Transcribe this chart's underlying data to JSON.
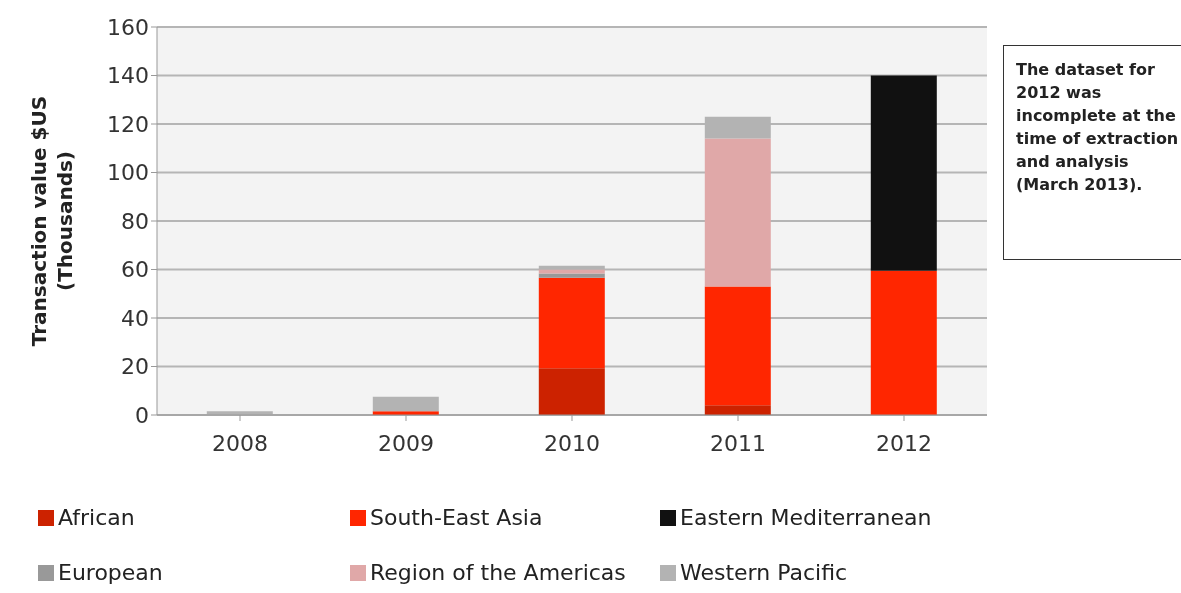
{
  "chart_data": {
    "type": "bar",
    "stacked": true,
    "ylabel": "Transaction value $US\n(Thousands)",
    "categories": [
      "2008",
      "2009",
      "2010",
      "2011",
      "2012"
    ],
    "series": [
      {
        "name": "African",
        "color": "#cc2200",
        "values": [
          null,
          null,
          19.3,
          4,
          null
        ]
      },
      {
        "name": "South-East Asia",
        "color": "#ff2600",
        "values": [
          null,
          1.5,
          37.3,
          49,
          59.5
        ]
      },
      {
        "name": "Eastern Mediterranean",
        "color": "#111111",
        "values": [
          null,
          null,
          null,
          null,
          80.5
        ]
      },
      {
        "name": "European",
        "color": "#999999",
        "values": [
          null,
          null,
          1.8,
          null,
          null
        ]
      },
      {
        "name": "Region of the Americas",
        "color": "#e0a8a8",
        "values": [
          null,
          null,
          1.6,
          61,
          null
        ]
      },
      {
        "name": "Western Pacific",
        "color": "#b3b3b3",
        "values": [
          1.5,
          6,
          1.5,
          9,
          null
        ]
      }
    ],
    "ylim": [
      0,
      160
    ],
    "yticks": [
      0,
      20,
      40,
      60,
      80,
      100,
      120,
      140,
      160
    ],
    "grid": "y",
    "legend": "bottom",
    "annotations": [
      "The dataset for 2012 was incomplete at the time of extraction and analysis (March 2013)."
    ]
  }
}
